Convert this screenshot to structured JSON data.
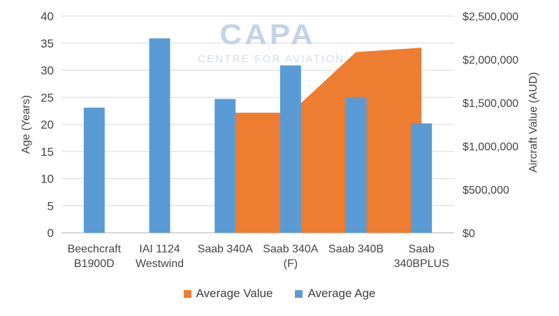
{
  "watermark": {
    "line1": "CAPA",
    "line2": "CENTRE FOR AVIATION"
  },
  "legend": {
    "items": [
      {
        "label": "Average Value",
        "color": "#ED7D31"
      },
      {
        "label": "Average Age",
        "color": "#5B9BD5"
      }
    ]
  },
  "chart_data": {
    "type": "combo-bar-area",
    "categories": [
      "Beechcraft\nB1900D",
      "IAI 1124\nWestwind",
      "Saab 340A",
      "Saab 340A\n(F)",
      "Saab 340B",
      "Saab\n340BPLUS"
    ],
    "series": [
      {
        "name": "Average Age",
        "type": "bar",
        "axis": "left",
        "color": "#5B9BD5",
        "values": [
          23.1,
          35.9,
          24.7,
          30.9,
          25.0,
          20.2
        ]
      },
      {
        "name": "Average Value",
        "type": "area",
        "axis": "right",
        "color": "#ED7D31",
        "values": [
          null,
          null,
          1385000,
          1385000,
          2085000,
          2135000
        ]
      }
    ],
    "axes": {
      "left": {
        "label": "Age (Years)",
        "min": 0,
        "max": 40,
        "step": 5
      },
      "right": {
        "label": "Aircraft Value (AUD)",
        "min": 0,
        "max": 2500000,
        "step": 500000,
        "prefix": "$"
      }
    },
    "grid": true,
    "legend_position": "bottom",
    "colors": {
      "grid": "#D9D9D9",
      "baseline": "#C0C0C0",
      "text": "#444444"
    }
  }
}
